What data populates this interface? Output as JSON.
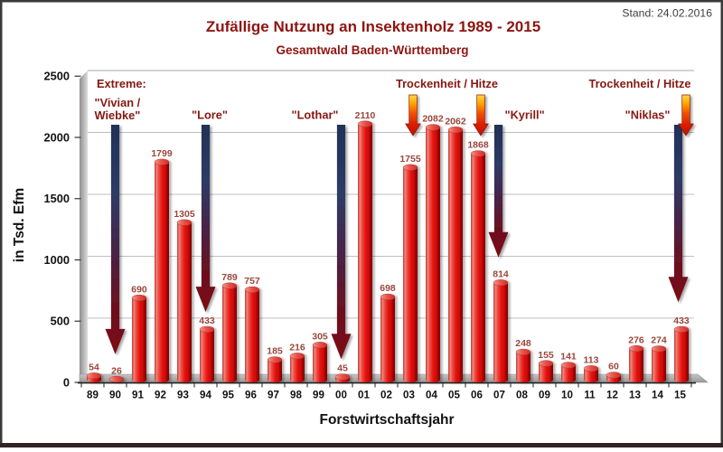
{
  "chart_data": {
    "type": "bar",
    "title": "Zufällige Nutzung an Insektenholz 1989 - 2015",
    "subtitle": "Gesamtwald Baden-Württemberg",
    "stand": "Stand: 24.02.2016",
    "xlabel": "Forstwirtschaftsjahr",
    "ylabel": "in Tsd. Efm",
    "ylim": [
      0,
      2500
    ],
    "ytick_step": 500,
    "grid": true,
    "categories": [
      "89",
      "90",
      "91",
      "92",
      "93",
      "94",
      "95",
      "96",
      "97",
      "98",
      "99",
      "00",
      "01",
      "02",
      "03",
      "04",
      "05",
      "06",
      "07",
      "08",
      "09",
      "10",
      "11",
      "12",
      "13",
      "14",
      "15"
    ],
    "values": [
      54,
      26,
      690,
      1799,
      1305,
      433,
      789,
      757,
      185,
      216,
      305,
      45,
      2110,
      698,
      1755,
      2082,
      2062,
      1868,
      814,
      248,
      155,
      141,
      113,
      60,
      276,
      274,
      433
    ],
    "annotations": {
      "legend_label": "Extreme:",
      "storm_events": [
        {
          "label": "\"Vivian /\nWiebke\"",
          "year": "90",
          "tip_value": 230,
          "label_anchor": "start",
          "label_dx": -23,
          "dx": 0
        },
        {
          "label": "\"Lore\"",
          "year": "94",
          "tip_value": 575,
          "label_anchor": "middle",
          "label_dx": 4.5,
          "dx": 0
        },
        {
          "label": "\"Lothar\"",
          "year": "00",
          "tip_value": 190,
          "label_anchor": "end",
          "label_dx": -3,
          "dx": 0
        },
        {
          "label": "\"Kyrill\"",
          "year": "07",
          "tip_value": 1020,
          "label_anchor": "start",
          "label_dx": 7,
          "dx": -1
        },
        {
          "label": "\"Niklas\"",
          "year": "15",
          "tip_value": 655,
          "label_anchor": "end",
          "label_dx": -9,
          "dx": -2
        }
      ],
      "heat_events": [
        {
          "label": "Trockenheit / Hitze",
          "years": [
            "03",
            "06"
          ],
          "label_dx": 0
        },
        {
          "label": "Trockenheit / Hitze",
          "years": [
            "15"
          ],
          "label_dx": -51
        }
      ]
    },
    "colors": {
      "title": "#8e1410",
      "annotation": "#851812",
      "value_label": "#9b463c",
      "stand": "#3d3d3d",
      "bar_main": "#e41311",
      "storm_arrow_top": "#223157",
      "storm_arrow_bottom": "#7d1116",
      "heat_arrow_top": "#ffd84a",
      "heat_arrow_bottom": "#c00d00",
      "floor": "#a8a8a8",
      "gridline": "#bfbfbf"
    }
  }
}
